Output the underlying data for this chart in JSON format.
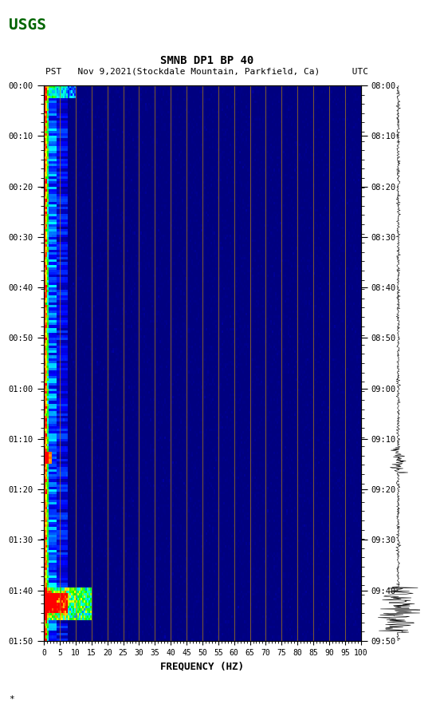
{
  "title_line1": "SMNB DP1 BP 40",
  "title_line2": "PST   Nov 9,2021(Stockdale Mountain, Parkfield, Ca)      UTC",
  "xlabel": "FREQUENCY (HZ)",
  "freq_min": 0,
  "freq_max": 100,
  "time_start_left": "00:00",
  "time_end_left": "01:50",
  "time_start_right": "08:00",
  "time_end_right": "09:50",
  "x_ticks": [
    0,
    5,
    10,
    15,
    20,
    25,
    30,
    35,
    40,
    45,
    50,
    55,
    60,
    65,
    70,
    75,
    80,
    85,
    90,
    95,
    100
  ],
  "vertical_lines_x": [
    5,
    10,
    15,
    20,
    25,
    30,
    35,
    40,
    45,
    50,
    55,
    60,
    65,
    70,
    75,
    80,
    85,
    90,
    95
  ],
  "n_time_steps": 220,
  "n_freq_bins": 200,
  "background_color": "#000080",
  "low_freq_hot_color": "#ff0000",
  "fig_bg": "#ffffff",
  "vline_color": "#b8860b",
  "seismogram_color": "#000000",
  "logo_color": "#006400"
}
